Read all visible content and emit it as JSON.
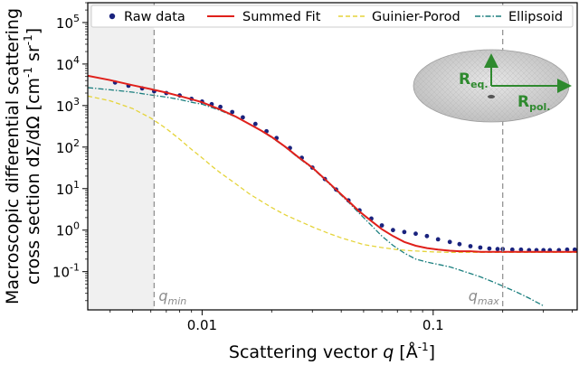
{
  "chart_data": {
    "type": "line",
    "xlabel_prefix": "Scattering vector ",
    "xlabel_var": "q",
    "xlabel_unit": " [Å",
    "xlabel_exp": "-1",
    "xlabel_close": "]",
    "ylabel_line1": "Macroscopic differential scattering",
    "ylabel_line2_prefix": "cross section dΣ/dΩ [cm",
    "ylabel_exp1": "-1",
    "ylabel_mid": " sr",
    "ylabel_exp2": "-1",
    "ylabel_close": "]",
    "x_scale": "log",
    "y_scale": "log",
    "xlim": [
      0.0032,
      0.42
    ],
    "ylim": [
      0.012,
      300000
    ],
    "x_ticks": [
      {
        "value": 0.01,
        "label": "0.01"
      },
      {
        "value": 0.1,
        "label": "0.1"
      }
    ],
    "y_ticks": [
      {
        "value": 0.1,
        "base": "10",
        "exp": "-1"
      },
      {
        "value": 1,
        "base": "10",
        "exp": "0"
      },
      {
        "value": 10,
        "base": "10",
        "exp": "1"
      },
      {
        "value": 100,
        "base": "10",
        "exp": "2"
      },
      {
        "value": 1000,
        "base": "10",
        "exp": "3"
      },
      {
        "value": 10000,
        "base": "10",
        "exp": "4"
      },
      {
        "value": 100000,
        "base": "10",
        "exp": "5"
      }
    ],
    "shaded_region_x": [
      0.0032,
      0.0062
    ],
    "q_min": {
      "value": 0.0062,
      "label_base": "q",
      "label_sub": "min"
    },
    "q_max": {
      "value": 0.2,
      "label_base": "q",
      "label_sub": "max"
    },
    "legend_placement": "top",
    "series": [
      {
        "name": "Raw data",
        "kind": "points",
        "color": "#1a237e",
        "x": [
          0.0042,
          0.0048,
          0.0055,
          0.0062,
          0.007,
          0.008,
          0.009,
          0.01,
          0.011,
          0.012,
          0.0135,
          0.015,
          0.017,
          0.019,
          0.021,
          0.024,
          0.027,
          0.03,
          0.034,
          0.038,
          0.043,
          0.048,
          0.054,
          0.06,
          0.067,
          0.075,
          0.084,
          0.094,
          0.105,
          0.118,
          0.13,
          0.145,
          0.16,
          0.175,
          0.19,
          0.2,
          0.22,
          0.24,
          0.26,
          0.28,
          0.3,
          0.32,
          0.35,
          0.38,
          0.41
        ],
        "y": [
          3600,
          3000,
          2600,
          2200,
          2000,
          1750,
          1450,
          1250,
          1080,
          930,
          700,
          520,
          360,
          240,
          165,
          95,
          55,
          32,
          17,
          9.5,
          5.2,
          3,
          1.9,
          1.3,
          1.0,
          0.9,
          0.82,
          0.72,
          0.6,
          0.52,
          0.46,
          0.41,
          0.38,
          0.36,
          0.35,
          0.35,
          0.34,
          0.34,
          0.33,
          0.33,
          0.33,
          0.33,
          0.33,
          0.34,
          0.34
        ]
      },
      {
        "name": "Summed Fit",
        "kind": "line",
        "style": "solid",
        "color": "#e0201b",
        "x": [
          0.0032,
          0.004,
          0.005,
          0.006,
          0.007,
          0.008,
          0.009,
          0.01,
          0.012,
          0.014,
          0.016,
          0.018,
          0.02,
          0.023,
          0.026,
          0.03,
          0.034,
          0.038,
          0.043,
          0.048,
          0.054,
          0.06,
          0.067,
          0.075,
          0.084,
          0.094,
          0.105,
          0.118,
          0.13,
          0.145,
          0.16,
          0.18,
          0.2,
          0.23,
          0.26,
          0.3,
          0.35,
          0.42
        ],
        "y": [
          5200,
          4100,
          3100,
          2500,
          2050,
          1700,
          1420,
          1200,
          800,
          540,
          360,
          250,
          175,
          100,
          58,
          32,
          17,
          9.5,
          5.0,
          2.8,
          1.65,
          1.05,
          0.72,
          0.52,
          0.42,
          0.37,
          0.34,
          0.32,
          0.31,
          0.31,
          0.3,
          0.3,
          0.3,
          0.3,
          0.3,
          0.3,
          0.3,
          0.3
        ]
      },
      {
        "name": "Guinier-Porod",
        "kind": "line",
        "style": "dashed",
        "color": "#e5d43a",
        "x": [
          0.0032,
          0.004,
          0.005,
          0.006,
          0.007,
          0.008,
          0.009,
          0.01,
          0.011,
          0.012,
          0.014,
          0.016,
          0.018,
          0.02,
          0.023,
          0.026,
          0.03,
          0.035,
          0.04,
          0.05,
          0.06,
          0.07,
          0.08,
          0.1,
          0.12,
          0.15,
          0.2,
          0.25,
          0.3,
          0.35,
          0.42
        ],
        "y": [
          1700,
          1300,
          850,
          500,
          280,
          155,
          88,
          55,
          35,
          24,
          13,
          7.5,
          5.0,
          3.5,
          2.3,
          1.7,
          1.2,
          0.85,
          0.65,
          0.45,
          0.38,
          0.34,
          0.32,
          0.3,
          0.29,
          0.29,
          0.29,
          0.29,
          0.29,
          0.29,
          0.29
        ]
      },
      {
        "name": "Ellipsoid",
        "kind": "line",
        "style": "dashdot",
        "color": "#1b7f7f",
        "x": [
          0.0032,
          0.004,
          0.005,
          0.006,
          0.007,
          0.008,
          0.009,
          0.01,
          0.012,
          0.014,
          0.016,
          0.018,
          0.02,
          0.023,
          0.026,
          0.03,
          0.034,
          0.038,
          0.043,
          0.048,
          0.054,
          0.06,
          0.067,
          0.075,
          0.084,
          0.094,
          0.105,
          0.118,
          0.13,
          0.145,
          0.16,
          0.18,
          0.2,
          0.23,
          0.26,
          0.3
        ],
        "y": [
          2700,
          2400,
          2100,
          1800,
          1600,
          1400,
          1200,
          1080,
          760,
          530,
          360,
          250,
          170,
          98,
          56,
          31,
          16.5,
          9.0,
          4.7,
          2.5,
          1.3,
          0.72,
          0.43,
          0.28,
          0.2,
          0.17,
          0.15,
          0.13,
          0.11,
          0.09,
          0.075,
          0.058,
          0.045,
          0.032,
          0.023,
          0.015
        ]
      }
    ],
    "inset": {
      "label_eq_base": "R",
      "label_eq_sub": "eq.",
      "label_pol_base": "R",
      "label_pol_sub": "pol.",
      "arrow_color": "#2f8a2f",
      "ellipsoid_color": "#c8c8c8"
    }
  }
}
